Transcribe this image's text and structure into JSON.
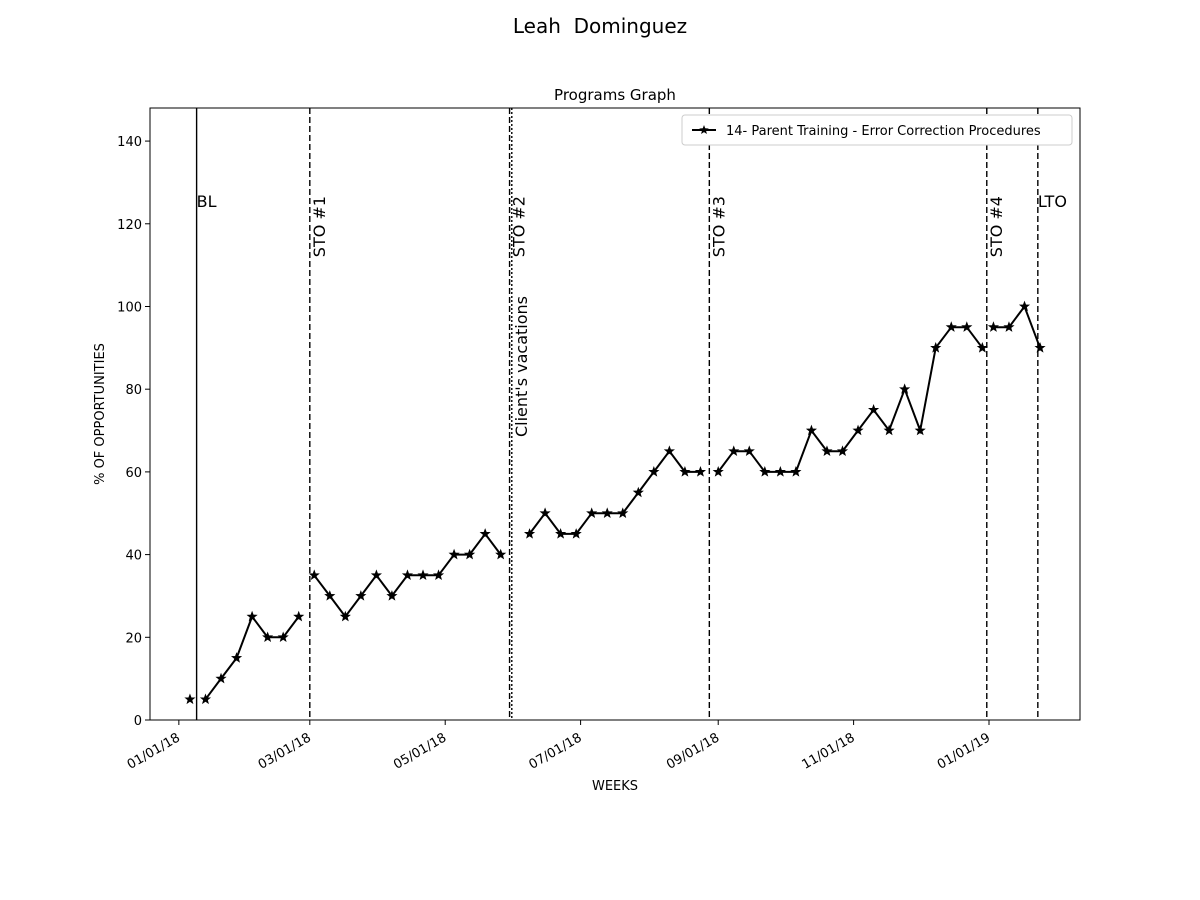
{
  "figure": {
    "suptitle": "Leah  Dominguez"
  },
  "chart_data": {
    "type": "line",
    "title": "Programs Graph",
    "xlabel": "WEEKS",
    "ylabel": "% OF OPPORTUNITIES",
    "ylim": [
      0,
      148
    ],
    "xlim": [
      "2017-12-19",
      "2019-02-11"
    ],
    "yticks": [
      0,
      20,
      40,
      60,
      80,
      100,
      120,
      140
    ],
    "xticks": [
      {
        "date": "2018-01-01",
        "label": "01/01/18"
      },
      {
        "date": "2018-03-01",
        "label": "03/01/18"
      },
      {
        "date": "2018-05-01",
        "label": "05/01/18"
      },
      {
        "date": "2018-07-01",
        "label": "07/01/18"
      },
      {
        "date": "2018-09-01",
        "label": "09/01/18"
      },
      {
        "date": "2018-11-01",
        "label": "11/01/18"
      },
      {
        "date": "2019-01-01",
        "label": "01/01/19"
      }
    ],
    "grid": false,
    "legend_position": "upper right",
    "series": [
      {
        "name": "14- Parent Training - Error Correction Procedures",
        "color": "#000000",
        "marker": "star",
        "segments": [
          [
            {
              "x": "2018-01-06",
              "y": 5
            }
          ],
          [
            {
              "x": "2018-01-13",
              "y": 5
            },
            {
              "x": "2018-01-20",
              "y": 10
            },
            {
              "x": "2018-01-27",
              "y": 15
            },
            {
              "x": "2018-02-03",
              "y": 25
            },
            {
              "x": "2018-02-10",
              "y": 20
            },
            {
              "x": "2018-02-17",
              "y": 20
            },
            {
              "x": "2018-02-24",
              "y": 25
            }
          ],
          [
            {
              "x": "2018-03-03",
              "y": 35
            },
            {
              "x": "2018-03-10",
              "y": 30
            },
            {
              "x": "2018-03-17",
              "y": 25
            },
            {
              "x": "2018-03-24",
              "y": 30
            },
            {
              "x": "2018-03-31",
              "y": 35
            },
            {
              "x": "2018-04-07",
              "y": 30
            },
            {
              "x": "2018-04-14",
              "y": 35
            },
            {
              "x": "2018-04-21",
              "y": 35
            },
            {
              "x": "2018-04-28",
              "y": 35
            },
            {
              "x": "2018-05-05",
              "y": 40
            },
            {
              "x": "2018-05-12",
              "y": 40
            },
            {
              "x": "2018-05-19",
              "y": 45
            },
            {
              "x": "2018-05-26",
              "y": 40
            }
          ],
          [
            {
              "x": "2018-06-08",
              "y": 45
            },
            {
              "x": "2018-06-15",
              "y": 50
            },
            {
              "x": "2018-06-22",
              "y": 45
            },
            {
              "x": "2018-06-29",
              "y": 45
            },
            {
              "x": "2018-07-06",
              "y": 50
            },
            {
              "x": "2018-07-13",
              "y": 50
            },
            {
              "x": "2018-07-20",
              "y": 50
            },
            {
              "x": "2018-07-27",
              "y": 55
            },
            {
              "x": "2018-08-03",
              "y": 60
            },
            {
              "x": "2018-08-10",
              "y": 65
            },
            {
              "x": "2018-08-17",
              "y": 60
            },
            {
              "x": "2018-08-24",
              "y": 60
            }
          ],
          [
            {
              "x": "2018-09-01",
              "y": 60
            },
            {
              "x": "2018-09-08",
              "y": 65
            },
            {
              "x": "2018-09-15",
              "y": 65
            },
            {
              "x": "2018-09-22",
              "y": 60
            },
            {
              "x": "2018-09-29",
              "y": 60
            },
            {
              "x": "2018-10-06",
              "y": 60
            },
            {
              "x": "2018-10-13",
              "y": 70
            },
            {
              "x": "2018-10-20",
              "y": 65
            },
            {
              "x": "2018-10-27",
              "y": 65
            },
            {
              "x": "2018-11-03",
              "y": 70
            },
            {
              "x": "2018-11-10",
              "y": 75
            },
            {
              "x": "2018-11-17",
              "y": 70
            },
            {
              "x": "2018-11-24",
              "y": 80
            },
            {
              "x": "2018-12-01",
              "y": 70
            },
            {
              "x": "2018-12-08",
              "y": 90
            },
            {
              "x": "2018-12-15",
              "y": 95
            },
            {
              "x": "2018-12-22",
              "y": 95
            },
            {
              "x": "2018-12-29",
              "y": 90
            }
          ],
          [
            {
              "x": "2019-01-03",
              "y": 95
            },
            {
              "x": "2019-01-10",
              "y": 95
            },
            {
              "x": "2019-01-17",
              "y": 100
            },
            {
              "x": "2019-01-24",
              "y": 90
            }
          ]
        ]
      }
    ],
    "phase_lines": [
      {
        "date": "2018-01-09",
        "label": "BL",
        "style": "solid",
        "label_rotation": 0
      },
      {
        "date": "2018-03-01",
        "label": "STO #1",
        "style": "dashed",
        "label_rotation": 90
      },
      {
        "date": "2018-05-30",
        "label": "STO #2",
        "style": "dashed",
        "label_rotation": 90
      },
      {
        "date": "2018-05-31",
        "label": "Client's vacations",
        "style": "dotted",
        "label_rotation": 90
      },
      {
        "date": "2018-08-28",
        "label": "STO #3",
        "style": "dashed",
        "label_rotation": 90
      },
      {
        "date": "2018-12-31",
        "label": "STO #4",
        "style": "dashed",
        "label_rotation": 90
      },
      {
        "date": "2019-01-23",
        "label": "LTO",
        "style": "dashed",
        "label_rotation": 0
      }
    ]
  }
}
